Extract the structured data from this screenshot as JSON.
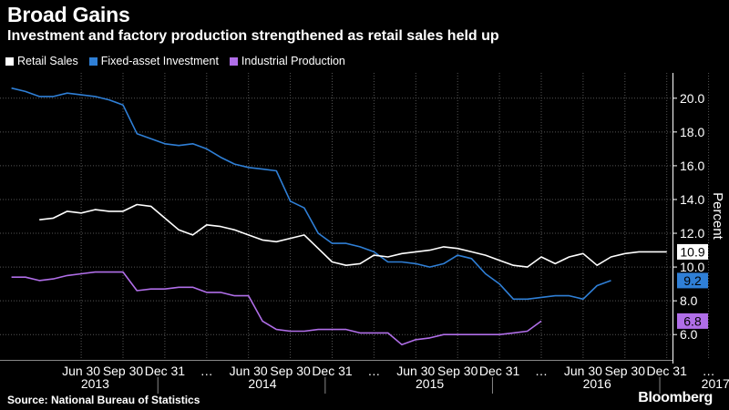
{
  "header": {
    "title": "Broad Gains",
    "subtitle": "Investment and factory production strengthened as retail sales held up"
  },
  "footer": {
    "source": "Source:  National Bureau of Statistics",
    "brand": "Bloomberg"
  },
  "colors": {
    "background": "#000000",
    "grid": "#555555",
    "retail": "#ffffff",
    "fai": "#2f7fd6",
    "ip": "#b06ee8"
  },
  "chart_data": {
    "type": "line",
    "xlabel": "",
    "ylabel": "Percent",
    "ylim": [
      4.5,
      21.5
    ],
    "y_ticks": [
      6.0,
      8.0,
      10.0,
      12.0,
      14.0,
      16.0,
      18.0,
      20.0
    ],
    "y_tick_labels": [
      "6.0",
      "8.0",
      "10.0",
      "12.0",
      "14.0",
      "16.0",
      "18.0",
      "20.0"
    ],
    "grid": true,
    "legend_position": "top-left",
    "x_tick_labels": [
      "Jun 30",
      "Sep 30",
      "Dec 31",
      "…",
      "Jun 30",
      "Sep 30",
      "Dec 31",
      "…",
      "Jun 30",
      "Sep 30",
      "Dec 31",
      "…",
      "Jun 30",
      "Sep 30",
      "Dec 31",
      "…"
    ],
    "x_tick_months": [
      5,
      8,
      11,
      14,
      17,
      20,
      23,
      26,
      29,
      32,
      35,
      38,
      41,
      44,
      47,
      50
    ],
    "year_labels": [
      "2013",
      "2014",
      "2015",
      "2016",
      "2017"
    ],
    "year_label_months": [
      6,
      18,
      30,
      42,
      50.5
    ],
    "x_start": "2013-02",
    "series": [
      {
        "name": "Retail Sales",
        "key": "retail",
        "end_label": "10.9",
        "values": [
          12.8,
          12.9,
          13.3,
          13.2,
          13.4,
          13.3,
          13.3,
          13.7,
          13.6,
          12.9,
          12.2,
          11.9,
          12.5,
          12.4,
          12.2,
          11.9,
          11.6,
          11.5,
          11.7,
          11.9,
          11.1,
          10.3,
          10.1,
          10.2,
          10.7,
          10.6,
          10.8,
          10.9,
          11.0,
          11.2,
          11.1,
          10.9,
          10.7,
          10.4,
          10.1,
          10.0,
          10.6,
          10.2,
          10.6,
          10.8,
          10.1,
          10.6,
          10.8,
          10.9,
          10.9,
          10.9
        ],
        "first_month": 2
      },
      {
        "name": "Fixed-asset Investment",
        "key": "fai",
        "end_label": "9.2",
        "values": [
          20.6,
          20.4,
          20.1,
          20.1,
          20.3,
          20.2,
          20.1,
          19.9,
          19.6,
          17.9,
          17.6,
          17.3,
          17.2,
          17.3,
          17.0,
          16.5,
          16.1,
          15.9,
          15.8,
          15.7,
          13.9,
          13.5,
          12.0,
          11.4,
          11.4,
          11.2,
          10.9,
          10.3,
          10.3,
          10.2,
          10.0,
          10.2,
          10.7,
          10.5,
          9.6,
          9.0,
          8.1,
          8.1,
          8.2,
          8.3,
          8.3,
          8.1,
          8.9,
          9.2
        ],
        "first_month": 0
      },
      {
        "name": "Industrial Production",
        "key": "ip",
        "end_label": "6.8",
        "values": [
          9.4,
          9.4,
          9.2,
          9.3,
          9.5,
          9.6,
          9.7,
          9.7,
          9.7,
          8.6,
          8.7,
          8.7,
          8.8,
          8.8,
          8.5,
          8.5,
          8.3,
          8.3,
          6.8,
          6.3,
          6.2,
          6.2,
          6.3,
          6.3,
          6.3,
          6.1,
          6.1,
          6.1,
          5.4,
          5.7,
          5.8,
          6.0,
          6.0,
          6.0,
          6.0,
          6.0,
          6.1,
          6.2,
          6.8
        ],
        "first_month": 0
      }
    ]
  }
}
